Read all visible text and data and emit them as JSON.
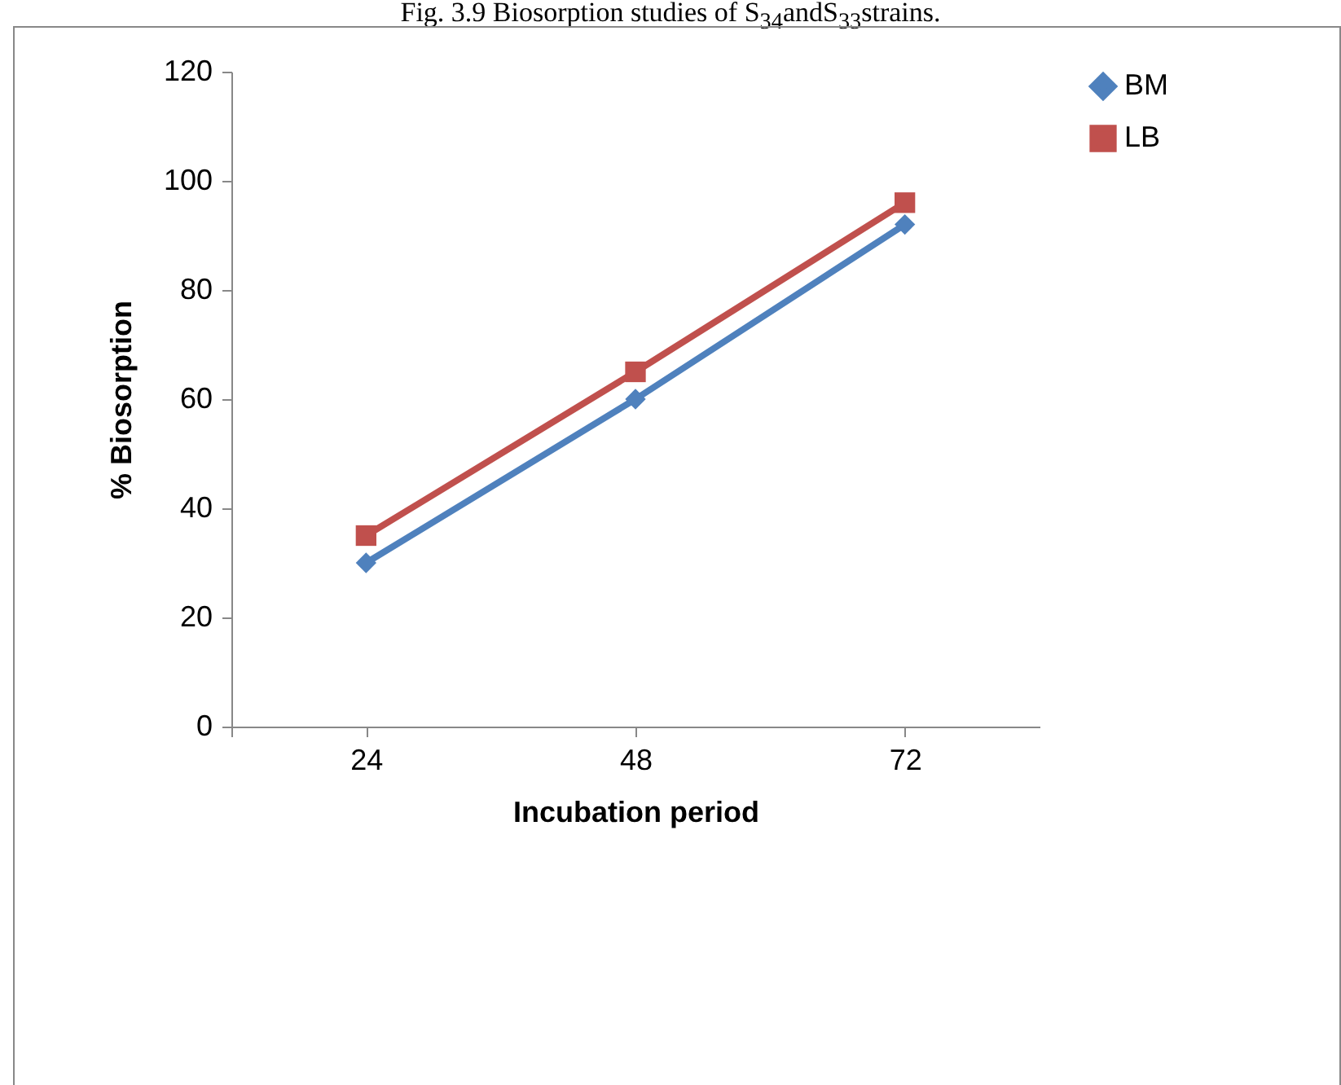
{
  "chart_data": {
    "type": "line",
    "title": "Fig. 3.9 Biosorption studies of S$_{34}$andS$_{33}$strains.",
    "xlabel": "Incubation period",
    "ylabel": "% Biosorption",
    "categories": [
      "24",
      "48",
      "72"
    ],
    "series": [
      {
        "name": "BM",
        "color": "#4f81bd",
        "marker": "diamond",
        "values": [
          30,
          60,
          92
        ]
      },
      {
        "name": "LB",
        "color": "#c0504d",
        "marker": "square",
        "values": [
          35,
          65,
          96
        ]
      }
    ],
    "ylim": [
      0,
      120
    ],
    "yticks": [
      0,
      20,
      40,
      60,
      80,
      100,
      120
    ],
    "grid": false,
    "legend": "right",
    "line_style": "solid"
  }
}
